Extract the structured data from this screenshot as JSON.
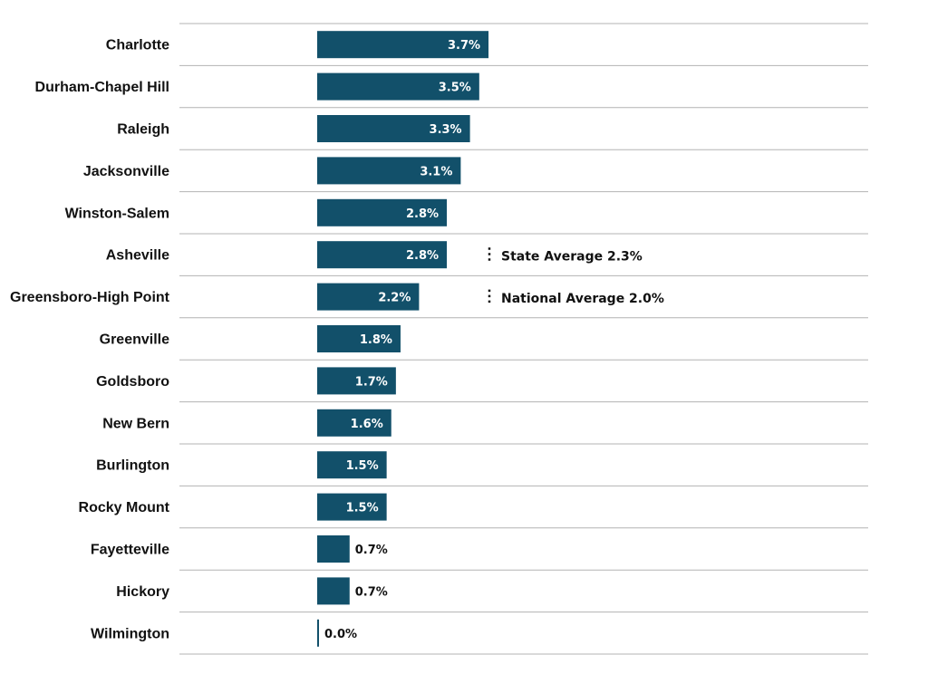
{
  "chart_data": {
    "type": "bar",
    "orientation": "horizontal",
    "categories": [
      "Charlotte",
      "Durham-Chapel Hill",
      "Raleigh",
      "Jacksonville",
      "Winston-Salem",
      "Asheville",
      "Greensboro-High Point",
      "Greenville",
      "Goldsboro",
      "New Bern",
      "Burlington",
      "Rocky Mount",
      "Fayetteville",
      "Hickory",
      "Wilmington"
    ],
    "values": [
      3.7,
      3.5,
      3.3,
      3.1,
      2.8,
      2.8,
      2.2,
      1.8,
      1.7,
      1.6,
      1.5,
      1.5,
      0.7,
      0.7,
      0.0
    ],
    "value_labels": [
      "3.7%",
      "3.5%",
      "3.3%",
      "3.1%",
      "2.8%",
      "2.8%",
      "2.2%",
      "1.8%",
      "1.7%",
      "1.6%",
      "1.5%",
      "1.5%",
      "0.7%",
      "0.7%",
      "0.0%"
    ],
    "xlim": [
      0,
      11.9
    ],
    "grid": "horizontal row separators",
    "bar_color": "#12506a",
    "reference_annotations": [
      {
        "label": "State Average 2.3%",
        "value": 2.3
      },
      {
        "label": "National Average 2.0%",
        "value": 2.0
      }
    ]
  }
}
